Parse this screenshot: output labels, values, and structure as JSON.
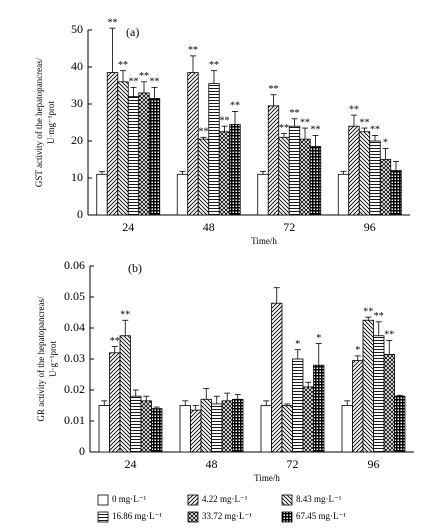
{
  "chart_data": [
    {
      "type": "bar",
      "panel": "(a)",
      "ylabel": [
        "GST activity of the hepatopancreas/",
        "U·mg⁻¹prot"
      ],
      "xlabel": "Time/h",
      "categories": [
        "24",
        "48",
        "72",
        "96"
      ],
      "ylim": [
        0,
        50
      ],
      "yticks": [
        0,
        10,
        20,
        30,
        40,
        50
      ],
      "series": [
        {
          "name": "0 mg·L⁻¹",
          "color": "#000",
          "pattern": "none",
          "values": [
            11,
            11,
            11,
            11
          ],
          "errors": [
            0.7,
            0.8,
            0.8,
            0.8
          ],
          "labels": [
            null,
            null,
            null,
            null
          ]
        },
        {
          "name": "4.22 mg·L⁻¹",
          "color": "#000",
          "pattern": "diag",
          "values": [
            38.5,
            38.5,
            29.5,
            24
          ],
          "errors": [
            12,
            4.5,
            3,
            3
          ],
          "labels": [
            "**",
            "**",
            "**",
            "**"
          ]
        },
        {
          "name": "8.43 mg·L⁻¹",
          "color": "#000",
          "pattern": "backdiag",
          "values": [
            36,
            20.5,
            21,
            22.5
          ],
          "errors": [
            3,
            0.5,
            1,
            1
          ],
          "labels": [
            "**",
            "**",
            "**",
            "**"
          ]
        },
        {
          "name": "16.86 mg·L⁻¹",
          "color": "#000",
          "pattern": "horizontal",
          "values": [
            32,
            35.5,
            24,
            20
          ],
          "errors": [
            2.5,
            3.5,
            2,
            1.5
          ],
          "labels": [
            "**",
            "**",
            "**",
            "**"
          ]
        },
        {
          "name": "33.72 mg·L⁻¹",
          "color": "#000",
          "pattern": "crosshatch",
          "values": [
            33,
            22.5,
            20.5,
            15
          ],
          "errors": [
            3,
            1.5,
            3,
            3
          ],
          "labels": [
            "**",
            "**",
            "**",
            "*"
          ]
        },
        {
          "name": "67.45 mg·L⁻¹",
          "color": "#000",
          "pattern": "grid",
          "values": [
            31.5,
            24.5,
            18.5,
            12
          ],
          "errors": [
            3,
            3.5,
            3,
            2.5
          ],
          "labels": [
            "**",
            "**",
            "**",
            null
          ]
        }
      ]
    },
    {
      "type": "bar",
      "panel": "(b)",
      "ylabel": [
        "GR activity of the hepatopancreas/",
        "U·g⁻¹prot"
      ],
      "xlabel": "Time/h",
      "categories": [
        "24",
        "48",
        "72",
        "96"
      ],
      "ylim": [
        0,
        0.06
      ],
      "yticks": [
        0,
        0.01,
        0.02,
        0.03,
        0.04,
        0.05,
        0.06
      ],
      "series": [
        {
          "color": "#000",
          "pattern": "none",
          "values": [
            0.015,
            0.015,
            0.015,
            0.015
          ],
          "errors": [
            0.0015,
            0.0015,
            0.0015,
            0.0015
          ],
          "labels": [
            null,
            null,
            null,
            null
          ]
        },
        {
          "color": "#000",
          "pattern": "diag",
          "values": [
            0.032,
            0.0135,
            0.048,
            0.0295
          ],
          "errors": [
            0.002,
            0.0015,
            0.005,
            0.0015
          ],
          "labels": [
            "**",
            null,
            null,
            "*"
          ]
        },
        {
          "color": "#000",
          "pattern": "backdiag",
          "values": [
            0.0375,
            0.017,
            0.015,
            0.0425
          ],
          "errors": [
            0.005,
            0.0035,
            0.0005,
            0.001
          ],
          "labels": [
            "**",
            null,
            null,
            "**"
          ]
        },
        {
          "color": "#000",
          "pattern": "horizontal",
          "values": [
            0.018,
            0.0155,
            0.03,
            0.0375
          ],
          "errors": [
            0.002,
            0.0025,
            0.003,
            0.0045
          ],
          "labels": [
            null,
            null,
            "*",
            "**"
          ]
        },
        {
          "color": "#000",
          "pattern": "crosshatch",
          "values": [
            0.0165,
            0.0165,
            0.021,
            0.0315
          ],
          "errors": [
            0.0015,
            0.0025,
            0.0015,
            0.0045
          ],
          "labels": [
            null,
            null,
            null,
            "**"
          ]
        },
        {
          "color": "#000",
          "pattern": "grid",
          "values": [
            0.014,
            0.017,
            0.028,
            0.018
          ],
          "errors": [
            0.0005,
            0.0015,
            0.007,
            0.0003
          ],
          "labels": [
            null,
            null,
            "*",
            null
          ]
        }
      ]
    }
  ]
}
